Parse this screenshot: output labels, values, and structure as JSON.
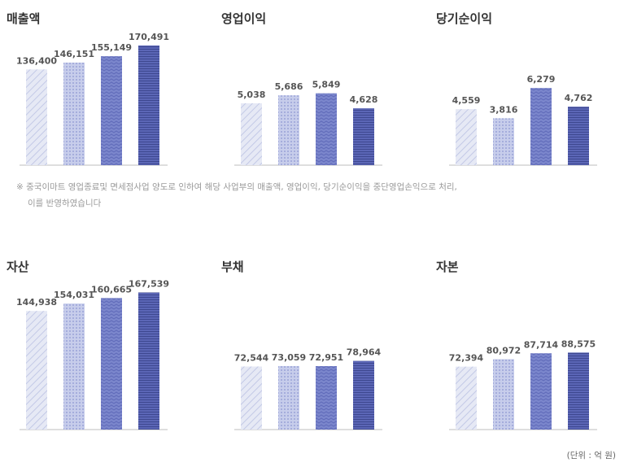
{
  "note": {
    "line1": "※ 중국이마트 영업종료및 면세점사업 양도로 인하여 해당 사업부의 매출액, 영업이익, 당기순이익을 중단영업손익으로 처리,",
    "line2": "이를 반영하였습니다"
  },
  "unit_label": "(단위 : 억 원)",
  "colors": {
    "bar1": "#d6dcef",
    "bar2": "#b9c2e6",
    "bar3": "#7b86cc",
    "bar4": "#5661b3",
    "axis": "#bdbdbd",
    "label": "#555555"
  },
  "chart_data": [
    {
      "type": "bar",
      "title": "매출액",
      "values": [
        136400,
        146151,
        155149,
        170491
      ],
      "labels": [
        "136,400",
        "146,151",
        "155,149",
        "170,491"
      ],
      "ylim": [
        0,
        175000
      ]
    },
    {
      "type": "bar",
      "title": "영업이익",
      "values": [
        5038,
        5686,
        5849,
        4628
      ],
      "labels": [
        "5,038",
        "5,686",
        "5,849",
        "4,628"
      ],
      "ylim": [
        0,
        10000
      ]
    },
    {
      "type": "bar",
      "title": "당기순이익",
      "values": [
        4559,
        3816,
        6279,
        4762
      ],
      "labels": [
        "4,559",
        "3,816",
        "6,279",
        "4,762"
      ],
      "ylim": [
        0,
        10000
      ]
    },
    {
      "type": "bar",
      "title": "자산",
      "values": [
        144938,
        154031,
        160665,
        167539
      ],
      "labels": [
        "144,938",
        "154,031",
        "160,665",
        "167,539"
      ],
      "ylim": [
        0,
        170000
      ]
    },
    {
      "type": "bar",
      "title": "부채",
      "values": [
        72544,
        73059,
        72951,
        78964
      ],
      "labels": [
        "72,544",
        "73,059",
        "72,951",
        "78,964"
      ],
      "ylim": [
        0,
        160000
      ]
    },
    {
      "type": "bar",
      "title": "자본",
      "values": [
        72394,
        80972,
        87714,
        88575
      ],
      "labels": [
        "72,394",
        "80,972",
        "87,714",
        "88,575"
      ],
      "ylim": [
        0,
        160000
      ]
    }
  ]
}
